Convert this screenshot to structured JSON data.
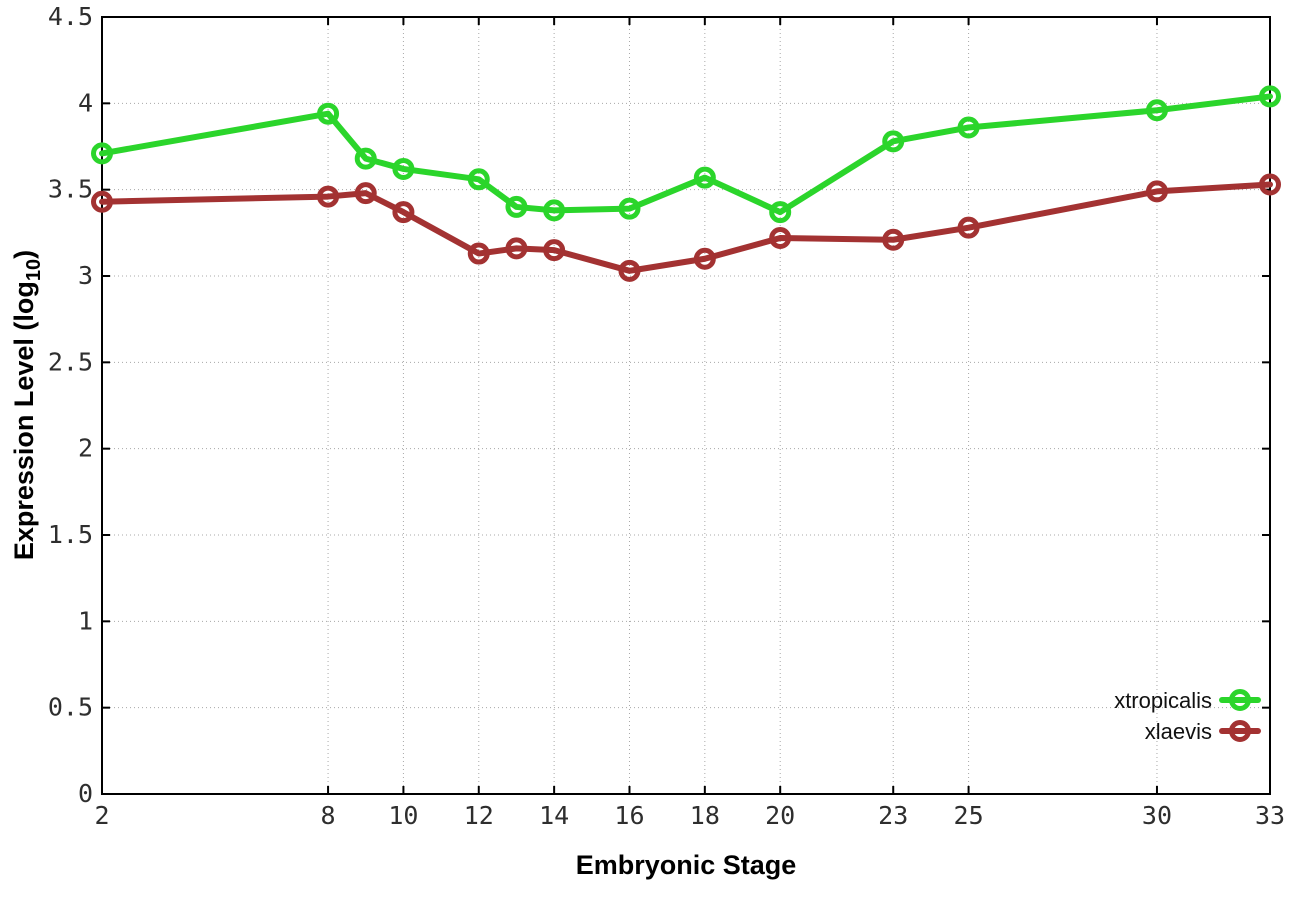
{
  "chart_data": {
    "type": "line",
    "title": "",
    "xlabel": "Embryonic Stage",
    "ylabel": "Expression Level (log10)",
    "ylabel_parts": {
      "main": "Expression Level (log",
      "sub": "10",
      "end": ")"
    },
    "x": [
      2,
      8,
      9,
      10,
      12,
      13,
      14,
      16,
      18,
      20,
      23,
      25,
      30,
      33
    ],
    "xticks": [
      2,
      8,
      10,
      12,
      14,
      16,
      18,
      20,
      23,
      25,
      30,
      33
    ],
    "yticks": [
      0,
      0.5,
      1,
      1.5,
      2,
      2.5,
      3,
      3.5,
      4,
      4.5
    ],
    "xlim": [
      2,
      33
    ],
    "ylim": [
      0,
      4.5
    ],
    "grid": true,
    "legend_position": "bottom-right",
    "series": [
      {
        "name": "xtropicalis",
        "color": "#2bd52b",
        "values": [
          3.71,
          3.94,
          3.68,
          3.62,
          3.56,
          3.4,
          3.38,
          3.39,
          3.57,
          3.37,
          3.78,
          3.86,
          3.96,
          4.04
        ]
      },
      {
        "name": "xlaevis",
        "color": "#a33232",
        "values": [
          3.43,
          3.46,
          3.48,
          3.37,
          3.13,
          3.16,
          3.15,
          3.03,
          3.1,
          3.22,
          3.21,
          3.28,
          3.49,
          3.53
        ]
      }
    ]
  },
  "colors": {
    "background": "#ffffff",
    "border": "#000000",
    "grid": "#a8a8a8",
    "tick_text": "#2e2e2e",
    "series_green": "#2bd52b",
    "series_red": "#a33232"
  }
}
